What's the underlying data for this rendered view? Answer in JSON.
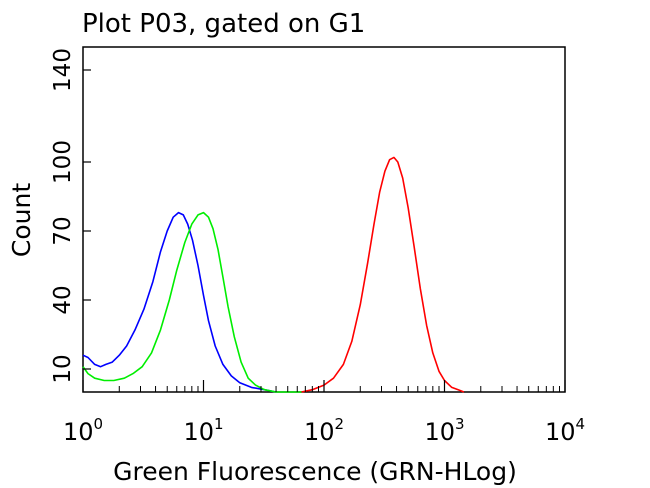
{
  "chart_data": {
    "type": "line",
    "title": "Plot P03, gated on G1",
    "xlabel": "Green Fluorescence (GRN-HLog)",
    "ylabel": "Count",
    "x_scale": "log",
    "xlim": [
      1,
      10000
    ],
    "ylim": [
      0,
      150
    ],
    "x_ticks": [
      {
        "value": 1,
        "base": "10",
        "exp": "0"
      },
      {
        "value": 10,
        "base": "10",
        "exp": "1"
      },
      {
        "value": 100,
        "base": "10",
        "exp": "2"
      },
      {
        "value": 1000,
        "base": "10",
        "exp": "3"
      },
      {
        "value": 10000,
        "base": "10",
        "exp": "4"
      }
    ],
    "y_ticks": [
      10,
      40,
      70,
      100,
      140
    ],
    "grid": false,
    "series": [
      {
        "color": "#0000ff",
        "points": [
          [
            1.0,
            16
          ],
          [
            1.1,
            15
          ],
          [
            1.25,
            12
          ],
          [
            1.4,
            11
          ],
          [
            1.55,
            12
          ],
          [
            1.75,
            13
          ],
          [
            2.0,
            16
          ],
          [
            2.3,
            20
          ],
          [
            2.7,
            27
          ],
          [
            3.2,
            36
          ],
          [
            3.8,
            48
          ],
          [
            4.4,
            61
          ],
          [
            5.0,
            70
          ],
          [
            5.6,
            76
          ],
          [
            6.2,
            78
          ],
          [
            6.8,
            77
          ],
          [
            7.4,
            73
          ],
          [
            8.1,
            66
          ],
          [
            9.0,
            55
          ],
          [
            10.0,
            42
          ],
          [
            11.0,
            31
          ],
          [
            12.5,
            20
          ],
          [
            14.5,
            12
          ],
          [
            17.0,
            7
          ],
          [
            20.0,
            4
          ],
          [
            25.0,
            2
          ],
          [
            32.0,
            1
          ],
          [
            40.0,
            0
          ]
        ]
      },
      {
        "color": "#00ee00",
        "points": [
          [
            1.0,
            11
          ],
          [
            1.1,
            8
          ],
          [
            1.25,
            6
          ],
          [
            1.5,
            5
          ],
          [
            1.8,
            5
          ],
          [
            2.2,
            6
          ],
          [
            2.6,
            8
          ],
          [
            3.1,
            11
          ],
          [
            3.7,
            17
          ],
          [
            4.4,
            27
          ],
          [
            5.2,
            40
          ],
          [
            6.0,
            53
          ],
          [
            7.0,
            65
          ],
          [
            8.0,
            73
          ],
          [
            9.0,
            77
          ],
          [
            10.0,
            78
          ],
          [
            11.0,
            76
          ],
          [
            12.0,
            71
          ],
          [
            13.2,
            62
          ],
          [
            14.5,
            50
          ],
          [
            16.0,
            37
          ],
          [
            18.0,
            24
          ],
          [
            20.5,
            13
          ],
          [
            23.5,
            6
          ],
          [
            27.0,
            3
          ],
          [
            32.0,
            1
          ],
          [
            40.0,
            0
          ],
          [
            65.0,
            0
          ]
        ]
      },
      {
        "color": "#ff0000",
        "points": [
          [
            65.0,
            0
          ],
          [
            80.0,
            1
          ],
          [
            100.0,
            3
          ],
          [
            120.0,
            6
          ],
          [
            145.0,
            12
          ],
          [
            170.0,
            22
          ],
          [
            200.0,
            38
          ],
          [
            230.0,
            56
          ],
          [
            260.0,
            73
          ],
          [
            290.0,
            87
          ],
          [
            320.0,
            96
          ],
          [
            350.0,
            101
          ],
          [
            380.0,
            102
          ],
          [
            410.0,
            100
          ],
          [
            450.0,
            93
          ],
          [
            500.0,
            80
          ],
          [
            560.0,
            63
          ],
          [
            630.0,
            45
          ],
          [
            710.0,
            29
          ],
          [
            800.0,
            17
          ],
          [
            900.0,
            9
          ],
          [
            1000.0,
            5
          ],
          [
            1150.0,
            2
          ],
          [
            1300.0,
            1
          ],
          [
            1450.0,
            0
          ]
        ]
      }
    ]
  }
}
